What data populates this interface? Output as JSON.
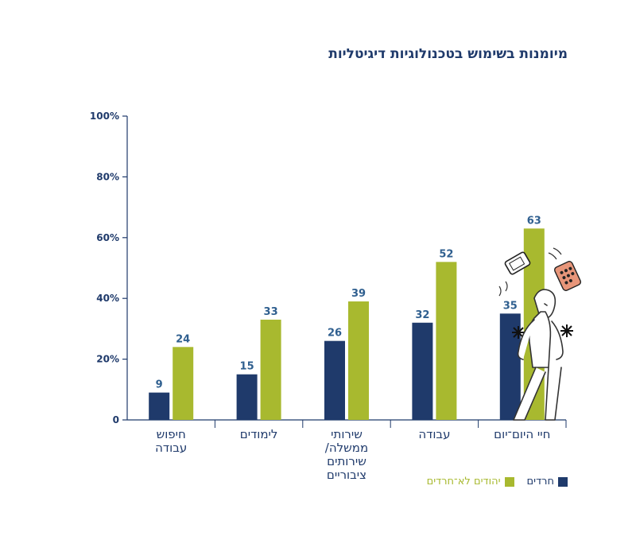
{
  "chart_data": {
    "type": "bar",
    "title": "מיומנות בשימוש בטכנולוגיות דיגיטליות",
    "categories": [
      [
        "חיפוש",
        "עבודה"
      ],
      [
        "לימודים"
      ],
      [
        "שירותי",
        "ממשלה/",
        "שירותים",
        "ציבוריים"
      ],
      [
        "עבודה"
      ],
      [
        "חיי היום־יום"
      ]
    ],
    "series": [
      {
        "name": "חרדים",
        "color": "#1f3a6b",
        "values": [
          9,
          15,
          26,
          32,
          35
        ]
      },
      {
        "name": "יהודים לא־חרדים",
        "color": "#a8b92f",
        "values": [
          24,
          33,
          39,
          52,
          63
        ]
      }
    ],
    "ylim": [
      0,
      100
    ],
    "yticks": [
      {
        "value": 0,
        "label": "0"
      },
      {
        "value": 20,
        "label": "20%"
      },
      {
        "value": 40,
        "label": "40%"
      },
      {
        "value": 60,
        "label": "60%"
      },
      {
        "value": 80,
        "label": "80%"
      },
      {
        "value": 100,
        "label": "100%"
      }
    ],
    "legend_position": "bottom-right",
    "grid": false,
    "axis_color": "#1f3a6b",
    "label_color": "#2f5f8f",
    "illustration": "juggling-person-illustration"
  }
}
